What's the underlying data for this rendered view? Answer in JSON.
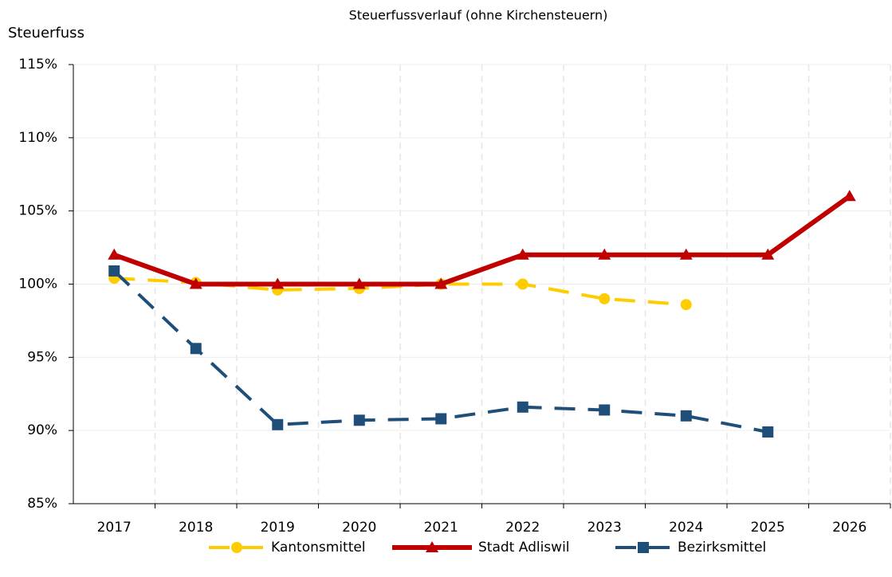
{
  "chart_data": {
    "type": "line",
    "title": "Steuerfussverlauf (ohne Kirchensteuern)",
    "y_label": "Steuerfuss",
    "categories": [
      "2017",
      "2018",
      "2019",
      "2020",
      "2021",
      "2022",
      "2023",
      "2024",
      "2025",
      "2026"
    ],
    "series": [
      {
        "name": "Kantonsmittel",
        "color": "#ffcc00",
        "marker": "circle",
        "dashed": true,
        "line_width": 4,
        "values": [
          100.4,
          100.1,
          99.6,
          99.7,
          100,
          100,
          99.0,
          98.6,
          null,
          null
        ]
      },
      {
        "name": "Stadt Adliswil",
        "color": "#c00000",
        "marker": "triangle",
        "dashed": false,
        "line_width": 6,
        "values": [
          102,
          100,
          100,
          100,
          100,
          102,
          102,
          102,
          102,
          106
        ]
      },
      {
        "name": "Bezirksmittel",
        "color": "#1f4e79",
        "marker": "square",
        "dashed": true,
        "line_width": 4,
        "values": [
          100.9,
          95.6,
          90.4,
          90.7,
          90.8,
          91.6,
          91.4,
          91.0,
          89.9,
          null
        ]
      }
    ],
    "ylim": [
      85,
      115
    ],
    "yticks": [
      {
        "value": 85,
        "label": "85%"
      },
      {
        "value": 90,
        "label": "90%"
      },
      {
        "value": 95,
        "label": "95%"
      },
      {
        "value": 100,
        "label": "100%"
      },
      {
        "value": 105,
        "label": "105%"
      },
      {
        "value": 110,
        "label": "110%"
      },
      {
        "value": 115,
        "label": "115%"
      }
    ],
    "grid": true,
    "legend": "bottom"
  }
}
